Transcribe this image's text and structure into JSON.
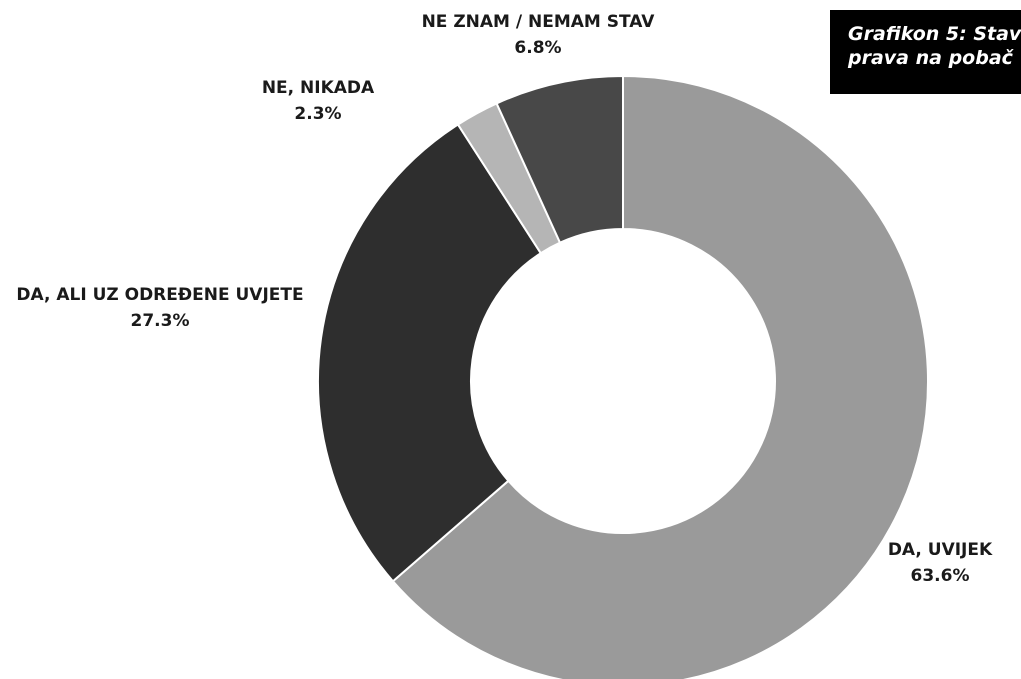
{
  "title": {
    "line1": "Grafikon 5: Stav",
    "line2": "prava na pobač"
  },
  "colors": {
    "background": "#ffffff",
    "title_box": "#000000",
    "title_text": "#ffffff",
    "slice_edge": "#ffffff"
  },
  "chart_data": {
    "type": "pie",
    "donut": true,
    "start": "top",
    "direction": "clockwise",
    "slices": [
      {
        "label": "DA, UVIJEK",
        "value": 63.6,
        "value_label": "63.6%",
        "color": "#9a9a9a"
      },
      {
        "label": "DA, ALI UZ ODREĐENE UVJETE",
        "value": 27.3,
        "value_label": "27.3%",
        "color": "#2e2e2e"
      },
      {
        "label": "NE, NIKADA",
        "value": 2.3,
        "value_label": "2.3%",
        "color": "#b5b5b5"
      },
      {
        "label": "NE ZNAM / NEMAM STAV",
        "value": 6.8,
        "value_label": "6.8%",
        "color": "#484848"
      }
    ]
  }
}
